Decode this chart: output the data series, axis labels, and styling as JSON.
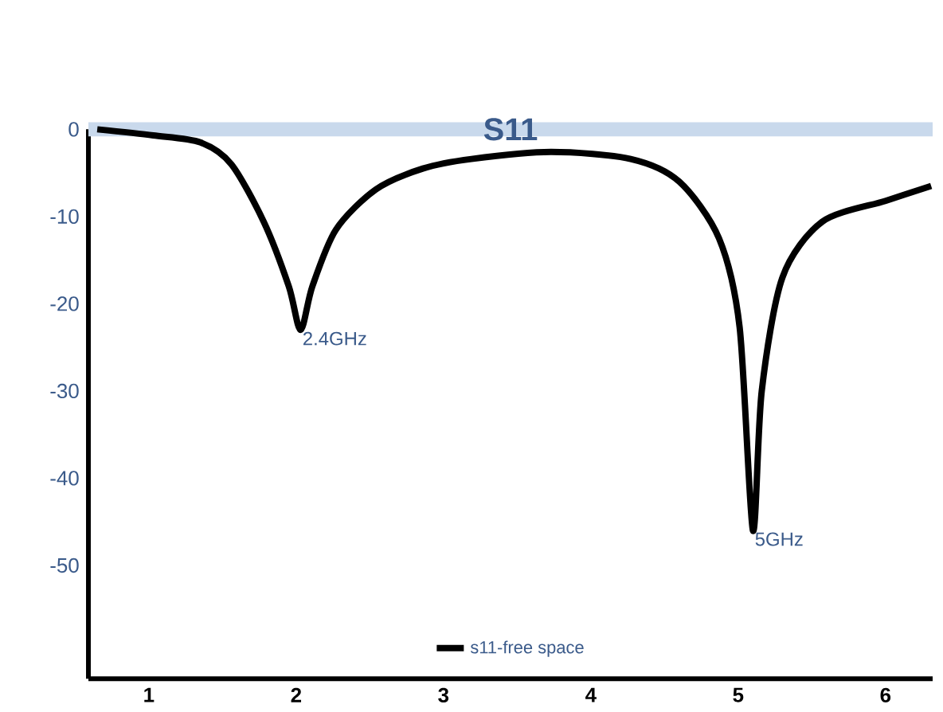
{
  "chart_data": {
    "type": "line",
    "title": "S11",
    "x": [
      0.65,
      1.03,
      1.35,
      1.56,
      1.78,
      1.95,
      2.03,
      2.11,
      2.27,
      2.54,
      2.86,
      3.19,
      3.73,
      4.27,
      4.6,
      4.87,
      5.01,
      5.1,
      5.16,
      5.3,
      5.57,
      6.0,
      6.31
    ],
    "series": [
      {
        "name": "s11-free space",
        "color": "#000000",
        "values": [
          0,
          -0.7,
          -1.5,
          -4,
          -10.6,
          -18,
          -23,
          -18,
          -11.5,
          -6.9,
          -4.5,
          -3.4,
          -2.6,
          -3.4,
          -6,
          -12.5,
          -22.7,
          -46,
          -30,
          -17,
          -10.6,
          -8.2,
          -6.5
        ]
      }
    ],
    "xlim": [
      0.59,
      6.32
    ],
    "xticks": [
      1,
      2,
      3,
      4,
      5,
      6
    ],
    "ylim": [
      -63,
      0
    ],
    "yticks": [
      0,
      -10,
      -20,
      -30,
      -40,
      -50
    ],
    "ref_lines": [
      {
        "axis": "y",
        "value": 0,
        "color": "#c9d9ec"
      }
    ],
    "annotations": [
      {
        "text": "2.4GHz",
        "x": 2.03,
        "y": -23
      },
      {
        "text": "5GHz",
        "x": 5.1,
        "y": -46
      }
    ],
    "grid": false,
    "legend": "bottom",
    "marker": "none",
    "line_style": "solid"
  }
}
